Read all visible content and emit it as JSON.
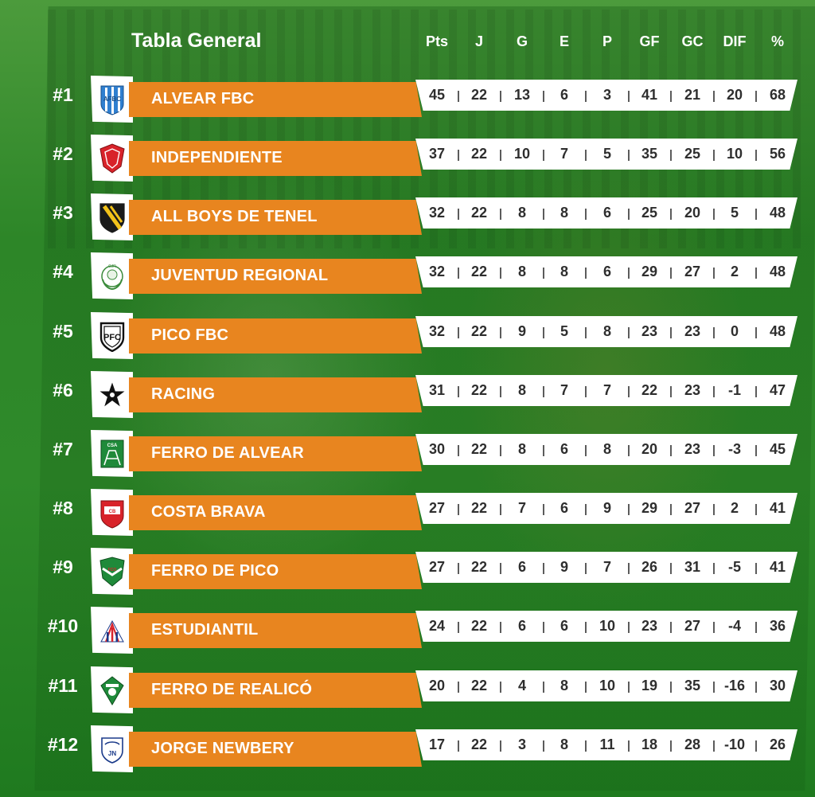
{
  "title": "Tabla General",
  "columns": [
    "Pts",
    "J",
    "G",
    "E",
    "P",
    "GF",
    "GC",
    "DIF",
    "%"
  ],
  "colors": {
    "bar": "#e8851f",
    "background": "#2f8a2a",
    "stats_bg": "#ffffff"
  },
  "rows": [
    {
      "rank": "#1",
      "team": "ALVEAR FBC",
      "logo": "alvear-crest-icon",
      "stats": [
        "45",
        "22",
        "13",
        "6",
        "3",
        "41",
        "21",
        "20",
        "68"
      ]
    },
    {
      "rank": "#2",
      "team": "INDEPENDIENTE",
      "logo": "independiente-crest-icon",
      "stats": [
        "37",
        "22",
        "10",
        "7",
        "5",
        "35",
        "25",
        "10",
        "56"
      ]
    },
    {
      "rank": "#3",
      "team": "ALL BOYS DE TENEL",
      "logo": "all-boys-crest-icon",
      "stats": [
        "32",
        "22",
        "8",
        "8",
        "6",
        "25",
        "20",
        "5",
        "48"
      ]
    },
    {
      "rank": "#4",
      "team": "JUVENTUD REGIONAL",
      "logo": "juventud-crest-icon",
      "stats": [
        "32",
        "22",
        "8",
        "8",
        "6",
        "29",
        "27",
        "2",
        "48"
      ]
    },
    {
      "rank": "#5",
      "team": "PICO FBC",
      "logo": "pico-crest-icon",
      "stats": [
        "32",
        "22",
        "9",
        "5",
        "8",
        "23",
        "23",
        "0",
        "48"
      ]
    },
    {
      "rank": "#6",
      "team": "RACING",
      "logo": "racing-star-icon",
      "stats": [
        "31",
        "22",
        "8",
        "7",
        "7",
        "22",
        "23",
        "-1",
        "47"
      ]
    },
    {
      "rank": "#7",
      "team": "FERRO DE ALVEAR",
      "logo": "ferro-alvear-crest-icon",
      "stats": [
        "30",
        "22",
        "8",
        "6",
        "8",
        "20",
        "23",
        "-3",
        "45"
      ]
    },
    {
      "rank": "#8",
      "team": "COSTA BRAVA",
      "logo": "costa-brava-crest-icon",
      "stats": [
        "27",
        "22",
        "7",
        "6",
        "9",
        "29",
        "27",
        "2",
        "41"
      ]
    },
    {
      "rank": "#9",
      "team": "FERRO DE PICO",
      "logo": "ferro-pico-crest-icon",
      "stats": [
        "27",
        "22",
        "6",
        "9",
        "7",
        "26",
        "31",
        "-5",
        "41"
      ]
    },
    {
      "rank": "#10",
      "team": "ESTUDIANTIL",
      "logo": "estudiantil-crest-icon",
      "stats": [
        "24",
        "22",
        "6",
        "6",
        "10",
        "23",
        "27",
        "-4",
        "36"
      ]
    },
    {
      "rank": "#11",
      "team": "FERRO DE REALICÓ",
      "logo": "ferro-realico-crest-icon",
      "stats": [
        "20",
        "22",
        "4",
        "8",
        "10",
        "19",
        "35",
        "-16",
        "30"
      ]
    },
    {
      "rank": "#12",
      "team": "JORGE NEWBERY",
      "logo": "jorge-newbery-crest-icon",
      "stats": [
        "17",
        "22",
        "3",
        "8",
        "11",
        "18",
        "28",
        "-10",
        "26"
      ]
    }
  ]
}
